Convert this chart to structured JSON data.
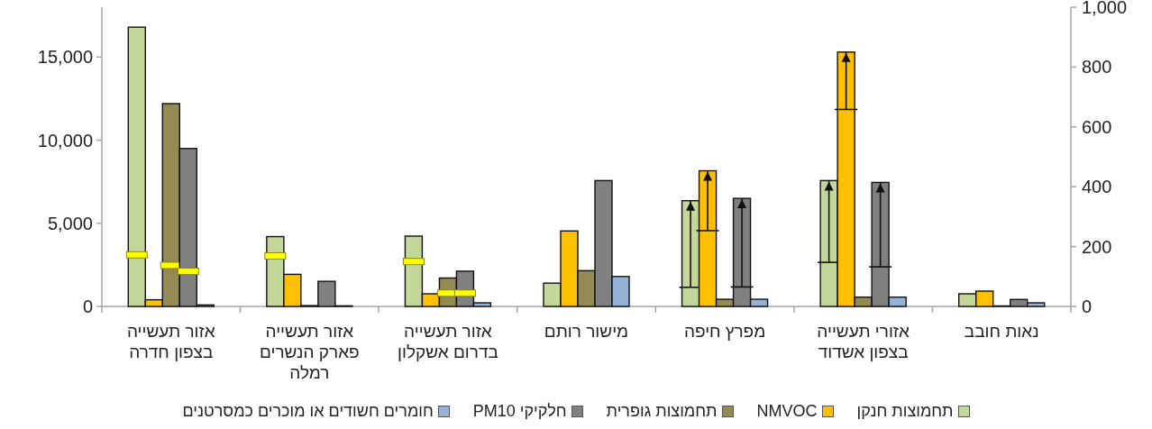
{
  "chart_data": {
    "type": "bar",
    "categories": [
      "אזור תעשייה בצפון חדרה",
      "אזור תעשייה פארק הנשרים רמלה",
      "אזור תעשייה בדרום אשקלון",
      "מישור רותם",
      "מפרץ חיפה",
      "אזורי תעשייה בצפון אשדוד",
      "נאות חובב"
    ],
    "series": [
      {
        "name": "תחמוצות חנקן",
        "color": "#c4d79b",
        "values": [
          16800,
          4200,
          4230,
          1400,
          6360,
          7570,
          760
        ],
        "errors": [
          [
            3100,
            3100
          ],
          [
            3040,
            3040
          ],
          [
            2700,
            2700
          ],
          null,
          [
            1150,
            6360
          ],
          [
            2650,
            7570
          ],
          null
        ]
      },
      {
        "name": "NMVOC",
        "color": "#ffc000",
        "values": [
          400,
          1930,
          760,
          4540,
          8160,
          15300,
          920
        ],
        "errors": [
          null,
          null,
          null,
          null,
          [
            4560,
            8160
          ],
          [
            11850,
            15300
          ],
          null
        ]
      },
      {
        "name": "תחמוצות גופרית",
        "color": "#948a54",
        "values": [
          12200,
          50,
          1710,
          2150,
          430,
          560,
          30
        ],
        "errors": [
          [
            2470,
            2470
          ],
          null,
          [
            800,
            800
          ],
          null,
          null,
          null,
          null
        ]
      },
      {
        "name": "חלקיקי PM10",
        "color": "#808080",
        "values": [
          9500,
          1510,
          2120,
          7570,
          6500,
          7460,
          420
        ],
        "errors": [
          [
            2110,
            2110
          ],
          null,
          [
            800,
            800
          ],
          null,
          [
            1170,
            6500
          ],
          [
            2380,
            7460
          ],
          null
        ]
      },
      {
        "name": "חומרים חשודים או מוכרים כמסרטנים",
        "color": "#95b3d7",
        "axis": "y2",
        "values": [
          5,
          2,
          12,
          100,
          24,
          31,
          12
        ]
      }
    ],
    "ylim": [
      0,
      18000
    ],
    "yticks": [
      0,
      {
        "value": 5000,
        "label": "5,000"
      },
      {
        "value": 10000,
        "label": "10,000"
      },
      {
        "value": 15000,
        "label": "15,000"
      }
    ],
    "y2lim": [
      0,
      1000
    ],
    "y2ticks": [
      0,
      200,
      400,
      600,
      800,
      {
        "value": 1000,
        "label": "1,000"
      }
    ],
    "legend": "bottom"
  }
}
